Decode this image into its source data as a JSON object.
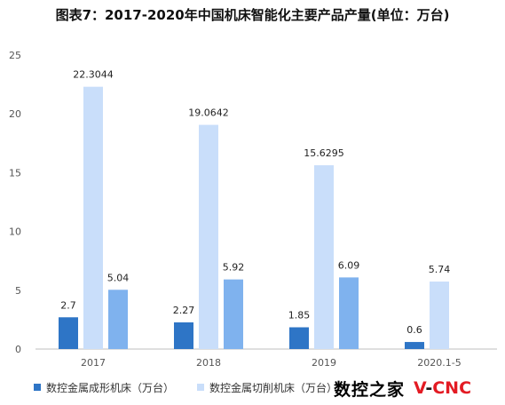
{
  "title": "图表7：2017-2020年中国机床智能化主要产品产量(单位：万台)",
  "logo": {
    "cn_text": "数控之家",
    "en_v": "V",
    "en_dash": "-",
    "en_cnc": "CNC"
  },
  "colors": {
    "series1": "#2e75c6",
    "series2": "#c9defa",
    "series3": "#7fb2ee",
    "axis": "#bfbfbf",
    "tick_text": "#555555"
  },
  "chart_data": {
    "type": "bar",
    "categories": [
      "2017",
      "2018",
      "2019",
      "2020.1-5"
    ],
    "series": [
      {
        "name": "数控金属成形机床（万台）",
        "values": [
          2.7,
          2.27,
          1.85,
          0.6
        ]
      },
      {
        "name": "数控金属切削机床（万台）",
        "values": [
          22.3044,
          19.0642,
          15.6295,
          5.74
        ]
      },
      {
        "name": "",
        "values": [
          5.04,
          5.92,
          6.09,
          null
        ]
      }
    ],
    "data_labels": [
      [
        "2.7",
        "2.27",
        "1.85",
        "0.6"
      ],
      [
        "22.3044",
        "19.0642",
        "15.6295",
        "5.74"
      ],
      [
        "5.04",
        "5.92",
        "6.09",
        ""
      ]
    ],
    "yticks": [
      "0",
      "5",
      "10",
      "15",
      "20",
      "25"
    ],
    "ylim": [
      0,
      25
    ],
    "grid": false,
    "legend": "bottom",
    "xlabel": "",
    "ylabel": ""
  }
}
